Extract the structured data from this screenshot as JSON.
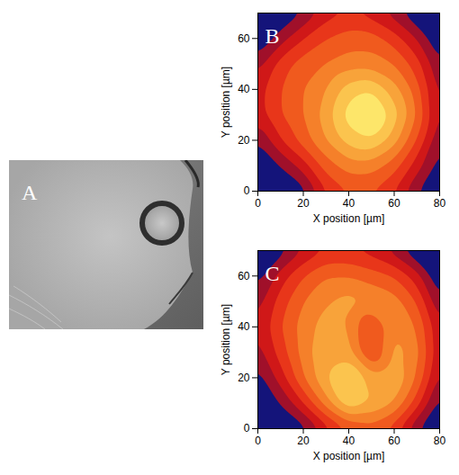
{
  "image": {
    "panel": "A"
  },
  "chart_data": [
    {
      "type": "contour",
      "panel": "B",
      "x_label": "X position [µm]",
      "y_label": "Y position [µm]",
      "x": [
        0,
        10,
        20,
        30,
        40,
        50,
        60,
        70,
        80
      ],
      "y": [
        0,
        10,
        20,
        30,
        40,
        50,
        60,
        70
      ],
      "cells": [
        [
          0.05,
          0.05,
          0.1,
          0.35,
          0.45,
          0.45,
          0.35,
          0.15,
          0.05
        ],
        [
          0.05,
          0.15,
          0.3,
          0.5,
          0.6,
          0.6,
          0.5,
          0.3,
          0.1
        ],
        [
          0.15,
          0.35,
          0.5,
          0.65,
          0.8,
          0.85,
          0.7,
          0.45,
          0.15
        ],
        [
          0.3,
          0.45,
          0.55,
          0.7,
          0.9,
          1.0,
          0.8,
          0.55,
          0.2
        ],
        [
          0.3,
          0.45,
          0.55,
          0.65,
          0.8,
          0.85,
          0.7,
          0.5,
          0.2
        ],
        [
          0.2,
          0.4,
          0.5,
          0.55,
          0.6,
          0.6,
          0.55,
          0.4,
          0.15
        ],
        [
          0.05,
          0.2,
          0.35,
          0.45,
          0.5,
          0.5,
          0.4,
          0.25,
          0.05
        ],
        [
          0.0,
          0.05,
          0.15,
          0.3,
          0.35,
          0.3,
          0.2,
          0.05,
          0.0
        ]
      ],
      "xlim": [
        0,
        80
      ],
      "ylim": [
        0,
        70
      ],
      "xticks": [
        0,
        20,
        40,
        60,
        80
      ],
      "yticks": [
        0,
        20,
        40,
        60
      ],
      "color_levels": [
        0.15,
        0.25,
        0.35,
        0.45,
        0.55,
        0.65,
        0.75,
        0.85,
        0.95
      ],
      "colors": [
        "#14147a",
        "#a0102a",
        "#d01818",
        "#e8361a",
        "#f05a1e",
        "#f5802a",
        "#f8a33a",
        "#fbc44e",
        "#fde66a",
        "#fff7a8"
      ]
    },
    {
      "type": "contour",
      "panel": "C",
      "x_label": "X position [µm]",
      "y_label": "Y position [µm]",
      "x": [
        0,
        10,
        20,
        30,
        40,
        50,
        60,
        70,
        80
      ],
      "y": [
        0,
        10,
        20,
        30,
        40,
        50,
        60,
        70
      ],
      "cells": [
        [
          0.05,
          0.05,
          0.1,
          0.3,
          0.45,
          0.5,
          0.4,
          0.15,
          0.05
        ],
        [
          0.05,
          0.15,
          0.35,
          0.6,
          0.85,
          0.75,
          0.65,
          0.4,
          0.1
        ],
        [
          0.1,
          0.3,
          0.55,
          0.75,
          0.9,
          0.7,
          0.75,
          0.55,
          0.2
        ],
        [
          0.2,
          0.4,
          0.6,
          0.75,
          0.7,
          0.4,
          0.7,
          0.6,
          0.25
        ],
        [
          0.25,
          0.45,
          0.6,
          0.7,
          0.65,
          0.4,
          0.65,
          0.55,
          0.25
        ],
        [
          0.2,
          0.4,
          0.55,
          0.65,
          0.7,
          0.65,
          0.6,
          0.45,
          0.15
        ],
        [
          0.1,
          0.3,
          0.45,
          0.55,
          0.55,
          0.5,
          0.45,
          0.3,
          0.05
        ],
        [
          0.0,
          0.1,
          0.25,
          0.35,
          0.35,
          0.3,
          0.2,
          0.05,
          0.0
        ]
      ],
      "xlim": [
        0,
        80
      ],
      "ylim": [
        0,
        70
      ],
      "xticks": [
        0,
        20,
        40,
        60,
        80
      ],
      "yticks": [
        0,
        20,
        40,
        60
      ],
      "color_levels": [
        0.15,
        0.25,
        0.35,
        0.45,
        0.55,
        0.65,
        0.75,
        0.85,
        0.95
      ],
      "colors": [
        "#14147a",
        "#a0102a",
        "#d01818",
        "#e8361a",
        "#f05a1e",
        "#f5802a",
        "#f8a33a",
        "#fbc44e",
        "#fde66a",
        "#fff7a8"
      ]
    }
  ]
}
